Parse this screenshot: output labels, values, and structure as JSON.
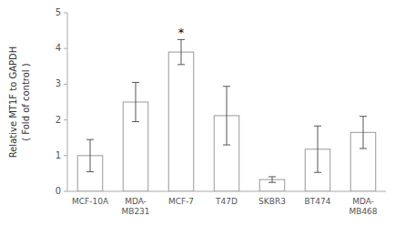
{
  "chart_data": {
    "type": "bar",
    "categories": [
      "MCF-10A",
      "MDA-\nMB231",
      "MCF-7",
      "T47D",
      "SKBR3",
      "BT474",
      "MDA-\nMB468"
    ],
    "values": [
      1.0,
      2.5,
      3.9,
      2.12,
      0.33,
      1.18,
      1.65
    ],
    "errors": [
      0.45,
      0.55,
      0.35,
      0.82,
      0.08,
      0.65,
      0.45
    ],
    "color": "#ffffff",
    "ylabel": "Relative MT1F to GAPDH\n( Fold of control )",
    "ylim": [
      0,
      5
    ],
    "yticks": [
      0,
      1,
      2,
      3,
      4,
      5
    ],
    "annotations": [
      {
        "text": "*",
        "x": "MCF-7"
      }
    ],
    "grid": false
  }
}
